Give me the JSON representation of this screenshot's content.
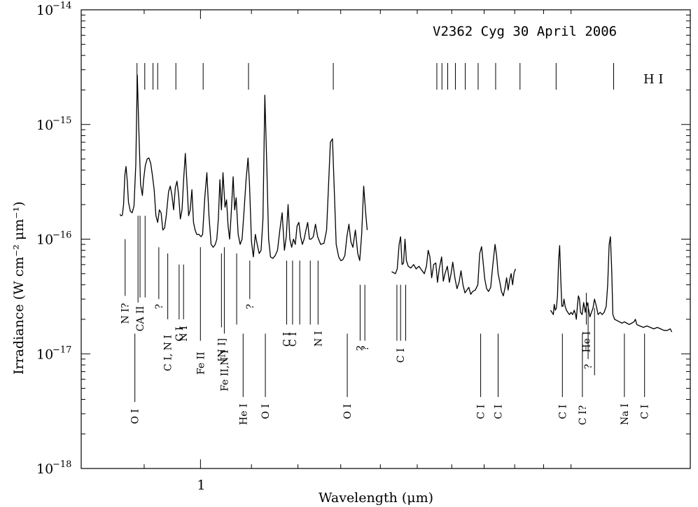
{
  "chart_data": {
    "type": "line",
    "title": "V2362 Cyg   30 April 2006",
    "xlabel": "Wavelength (μm)",
    "ylabel": "Irradiance (W cm⁻² μm⁻¹)",
    "x_scale": "log",
    "y_scale": "log",
    "xlim": [
      0.8,
      2.5
    ],
    "ylim": [
      1e-18,
      1e-14
    ],
    "x_tick_labels": [
      "1"
    ],
    "y_tick_labels": [
      {
        "base": "10",
        "exp": "−18",
        "value": 1e-18
      },
      {
        "base": "10",
        "exp": "−17",
        "value": 1e-17
      },
      {
        "base": "10",
        "exp": "−16",
        "value": 1e-16
      },
      {
        "base": "10",
        "exp": "−15",
        "value": 1e-15
      },
      {
        "base": "10",
        "exp": "−14",
        "value": 1e-14
      }
    ],
    "series_hi_label": "H I",
    "hi_line_wavelengths": [
      0.888,
      0.901,
      0.915,
      0.923,
      0.955,
      1.005,
      1.094,
      1.282,
      1.556,
      1.571,
      1.588,
      1.611,
      1.641,
      1.681,
      1.737,
      1.818,
      1.945,
      2.166
    ],
    "spectrum": [
      [
        0.86,
        1.65e-16
      ],
      [
        0.862,
        1.6e-16
      ],
      [
        0.864,
        1.62e-16
      ],
      [
        0.866,
        2e-16
      ],
      [
        0.868,
        3.6e-16
      ],
      [
        0.87,
        4.3e-16
      ],
      [
        0.872,
        3.2e-16
      ],
      [
        0.874,
        2.1e-16
      ],
      [
        0.877,
        1.75e-16
      ],
      [
        0.88,
        1.7e-16
      ],
      [
        0.883,
        1.95e-16
      ],
      [
        0.886,
        4.5e-16
      ],
      [
        0.8885,
        2.7e-15
      ],
      [
        0.891,
        9e-16
      ],
      [
        0.894,
        3e-16
      ],
      [
        0.897,
        2.4e-16
      ],
      [
        0.899,
        3.3e-16
      ],
      [
        0.902,
        4.4e-16
      ],
      [
        0.905,
        5e-16
      ],
      [
        0.908,
        5.1e-16
      ],
      [
        0.911,
        4.6e-16
      ],
      [
        0.914,
        3.6e-16
      ],
      [
        0.917,
        2.7e-16
      ],
      [
        0.92,
        1.6e-16
      ],
      [
        0.923,
        1.4e-16
      ],
      [
        0.926,
        1.8e-16
      ],
      [
        0.929,
        1.7e-16
      ],
      [
        0.932,
        1.2e-16
      ],
      [
        0.935,
        1.25e-16
      ],
      [
        0.938,
        1.6e-16
      ],
      [
        0.942,
        2.6e-16
      ],
      [
        0.945,
        2.9e-16
      ],
      [
        0.948,
        2.4e-16
      ],
      [
        0.951,
        1.8e-16
      ],
      [
        0.954,
        2.8e-16
      ],
      [
        0.957,
        3.2e-16
      ],
      [
        0.96,
        2.4e-16
      ],
      [
        0.963,
        1.5e-16
      ],
      [
        0.966,
        1.8e-16
      ],
      [
        0.969,
        3.3e-16
      ],
      [
        0.972,
        5.6e-16
      ],
      [
        0.975,
        3.1e-16
      ],
      [
        0.978,
        1.6e-16
      ],
      [
        0.981,
        1.8e-16
      ],
      [
        0.984,
        2.7e-16
      ],
      [
        0.987,
        1.4e-16
      ],
      [
        0.99,
        1.2e-16
      ],
      [
        0.993,
        1.1e-16
      ],
      [
        0.997,
        1.1e-16
      ],
      [
        1.001,
        1.05e-16
      ],
      [
        1.004,
        1.1e-16
      ],
      [
        1.008,
        2.3e-16
      ],
      [
        1.012,
        3.8e-16
      ],
      [
        1.016,
        1.6e-16
      ],
      [
        1.02,
        9e-17
      ],
      [
        1.024,
        8.5e-17
      ],
      [
        1.028,
        9e-17
      ],
      [
        1.031,
        1e-16
      ],
      [
        1.034,
        1.5e-16
      ],
      [
        1.037,
        3.3e-16
      ],
      [
        1.04,
        1.8e-16
      ],
      [
        1.043,
        3.8e-16
      ],
      [
        1.047,
        1.9e-16
      ],
      [
        1.05,
        2.2e-16
      ],
      [
        1.053,
        1.3e-16
      ],
      [
        1.056,
        1e-16
      ],
      [
        1.059,
        1.6e-16
      ],
      [
        1.063,
        3.5e-16
      ],
      [
        1.066,
        1.8e-16
      ],
      [
        1.069,
        2.3e-16
      ],
      [
        1.073,
        1.1e-16
      ],
      [
        1.077,
        9e-17
      ],
      [
        1.081,
        1e-16
      ],
      [
        1.085,
        1.8e-16
      ],
      [
        1.089,
        3.3e-16
      ],
      [
        1.093,
        5.1e-16
      ],
      [
        1.096,
        3e-16
      ],
      [
        1.1,
        9.5e-17
      ],
      [
        1.104,
        7e-17
      ],
      [
        1.108,
        1.1e-16
      ],
      [
        1.112,
        9e-17
      ],
      [
        1.116,
        7.5e-17
      ],
      [
        1.12,
        8e-17
      ],
      [
        1.124,
        1.5e-16
      ],
      [
        1.128,
        1.8e-15
      ],
      [
        1.132,
        4.6e-16
      ],
      [
        1.136,
        1e-16
      ],
      [
        1.14,
        7e-17
      ],
      [
        1.145,
        6.8e-17
      ],
      [
        1.15,
        7.2e-17
      ],
      [
        1.155,
        8e-17
      ],
      [
        1.16,
        1.2e-16
      ],
      [
        1.165,
        1.7e-16
      ],
      [
        1.17,
        8e-17
      ],
      [
        1.174,
        1.05e-16
      ],
      [
        1.178,
        2e-16
      ],
      [
        1.182,
        1e-16
      ],
      [
        1.186,
        8.5e-17
      ],
      [
        1.19,
        1e-16
      ],
      [
        1.194,
        9e-17
      ],
      [
        1.198,
        1.3e-16
      ],
      [
        1.202,
        1.4e-16
      ],
      [
        1.206,
        1.05e-16
      ],
      [
        1.21,
        9e-17
      ],
      [
        1.214,
        1e-16
      ],
      [
        1.218,
        1.2e-16
      ],
      [
        1.222,
        1.4e-16
      ],
      [
        1.226,
        1e-16
      ],
      [
        1.23,
        1e-16
      ],
      [
        1.235,
        1.05e-16
      ],
      [
        1.24,
        1.35e-16
      ],
      [
        1.245,
        1.05e-16
      ],
      [
        1.252,
        9e-17
      ],
      [
        1.26,
        9.2e-17
      ],
      [
        1.266,
        1.2e-16
      ],
      [
        1.27,
        2.6e-16
      ],
      [
        1.275,
        7e-16
      ],
      [
        1.28,
        7.5e-16
      ],
      [
        1.284,
        3e-16
      ],
      [
        1.289,
        9e-17
      ],
      [
        1.295,
        7e-17
      ],
      [
        1.3,
        6.5e-17
      ],
      [
        1.305,
        6.6e-17
      ],
      [
        1.31,
        7.2e-17
      ],
      [
        1.315,
        1.05e-16
      ],
      [
        1.32,
        1.35e-16
      ],
      [
        1.325,
        9.5e-17
      ],
      [
        1.33,
        8.5e-17
      ],
      [
        1.336,
        1.2e-16
      ],
      [
        1.342,
        7.5e-17
      ],
      [
        1.347,
        6.5e-17
      ],
      [
        1.352,
        1.1e-16
      ],
      [
        1.357,
        2.9e-16
      ],
      [
        1.362,
        1.7e-16
      ],
      [
        1.366,
        1.2e-16
      ],
      null,
      [
        1.43,
        5.2e-17
      ],
      [
        1.44,
        5e-17
      ],
      [
        1.445,
        5.5e-17
      ],
      [
        1.45,
        9e-17
      ],
      [
        1.454,
        1.05e-16
      ],
      [
        1.458,
        6e-17
      ],
      [
        1.462,
        6.2e-17
      ],
      [
        1.466,
        1e-16
      ],
      [
        1.47,
        6.5e-17
      ],
      [
        1.475,
        5.8e-17
      ],
      [
        1.482,
        5.6e-17
      ],
      [
        1.49,
        6e-17
      ],
      [
        1.497,
        5.5e-17
      ],
      [
        1.505,
        5.8e-17
      ],
      [
        1.512,
        5.4e-17
      ],
      [
        1.52,
        5e-17
      ],
      [
        1.526,
        5.8e-17
      ],
      [
        1.531,
        8e-17
      ],
      [
        1.536,
        7e-17
      ],
      [
        1.541,
        4.6e-17
      ],
      [
        1.547,
        6e-17
      ],
      [
        1.553,
        6.2e-17
      ],
      [
        1.558,
        4.2e-17
      ],
      [
        1.563,
        5.5e-17
      ],
      [
        1.57,
        7e-17
      ],
      [
        1.575,
        4.3e-17
      ],
      [
        1.58,
        5e-17
      ],
      [
        1.587,
        5.8e-17
      ],
      [
        1.593,
        4.2e-17
      ],
      [
        1.598,
        5e-17
      ],
      [
        1.603,
        6.3e-17
      ],
      [
        1.61,
        4.5e-17
      ],
      [
        1.616,
        3.7e-17
      ],
      [
        1.622,
        4.2e-17
      ],
      [
        1.628,
        5.3e-17
      ],
      [
        1.634,
        4e-17
      ],
      [
        1.64,
        3.4e-17
      ],
      [
        1.646,
        3.6e-17
      ],
      [
        1.652,
        3.8e-17
      ],
      [
        1.658,
        3.3e-17
      ],
      [
        1.664,
        3.5e-17
      ],
      [
        1.672,
        3.6e-17
      ],
      [
        1.68,
        4e-17
      ],
      [
        1.686,
        7.5e-17
      ],
      [
        1.692,
        8.6e-17
      ],
      [
        1.697,
        6.2e-17
      ],
      [
        1.702,
        4.5e-17
      ],
      [
        1.708,
        3.7e-17
      ],
      [
        1.714,
        3.5e-17
      ],
      [
        1.721,
        3.8e-17
      ],
      [
        1.728,
        6e-17
      ],
      [
        1.735,
        9e-17
      ],
      [
        1.74,
        7.2e-17
      ],
      [
        1.745,
        5e-17
      ],
      [
        1.75,
        4.3e-17
      ],
      [
        1.756,
        3.5e-17
      ],
      [
        1.762,
        3.2e-17
      ],
      [
        1.768,
        3.8e-17
      ],
      [
        1.773,
        4.6e-17
      ],
      [
        1.778,
        3.6e-17
      ],
      [
        1.783,
        4.4e-17
      ],
      [
        1.788,
        5e-17
      ],
      [
        1.793,
        4e-17
      ],
      [
        1.798,
        5.1e-17
      ],
      [
        1.803,
        5.5e-17
      ],
      null,
      [
        1.925,
        2.4e-17
      ],
      [
        1.93,
        2.3e-17
      ],
      [
        1.935,
        2.2e-17
      ],
      [
        1.938,
        2.7e-17
      ],
      [
        1.942,
        2.4e-17
      ],
      [
        1.946,
        2.5e-17
      ],
      [
        1.95,
        3.2e-17
      ],
      [
        1.954,
        6.5e-17
      ],
      [
        1.958,
        8.8e-17
      ],
      [
        1.962,
        4.5e-17
      ],
      [
        1.966,
        2.6e-17
      ],
      [
        1.97,
        2.6e-17
      ],
      [
        1.974,
        3e-17
      ],
      [
        1.978,
        2.6e-17
      ],
      [
        1.983,
        2.4e-17
      ],
      [
        1.988,
        2.3e-17
      ],
      [
        1.994,
        2.2e-17
      ],
      [
        2.0,
        2.3e-17
      ],
      [
        2.006,
        2.2e-17
      ],
      [
        2.012,
        2.4e-17
      ],
      [
        2.017,
        2.2e-17
      ],
      [
        2.02,
        2e-17
      ],
      [
        2.024,
        2.6e-17
      ],
      [
        2.028,
        3.2e-17
      ],
      [
        2.032,
        3e-17
      ],
      [
        2.036,
        2.3e-17
      ],
      [
        2.042,
        2.2e-17
      ],
      [
        2.048,
        2.8e-17
      ],
      [
        2.054,
        2.3e-17
      ],
      [
        2.06,
        2.8e-17
      ],
      [
        2.066,
        2.5e-17
      ],
      [
        2.072,
        2.1e-17
      ],
      [
        2.078,
        2.3e-17
      ],
      [
        2.084,
        2.5e-17
      ],
      [
        2.09,
        3e-17
      ],
      [
        2.097,
        2.6e-17
      ],
      [
        2.104,
        2.2e-17
      ],
      [
        2.112,
        2.3e-17
      ],
      [
        2.12,
        2.2e-17
      ],
      [
        2.128,
        2.3e-17
      ],
      [
        2.136,
        2.6e-17
      ],
      [
        2.142,
        4e-17
      ],
      [
        2.148,
        9e-17
      ],
      [
        2.153,
        1.05e-16
      ],
      [
        2.158,
        5.5e-17
      ],
      [
        2.163,
        2.2e-17
      ],
      [
        2.17,
        2e-17
      ],
      [
        2.18,
        1.95e-17
      ],
      [
        2.19,
        1.9e-17
      ],
      [
        2.2,
        1.85e-17
      ],
      [
        2.21,
        1.9e-17
      ],
      [
        2.22,
        1.85e-17
      ],
      [
        2.23,
        1.8e-17
      ],
      [
        2.24,
        1.85e-17
      ],
      [
        2.25,
        1.9e-17
      ],
      [
        2.256,
        2e-17
      ],
      [
        2.262,
        1.8e-17
      ],
      [
        2.275,
        1.75e-17
      ],
      [
        2.29,
        1.7e-17
      ],
      [
        2.305,
        1.75e-17
      ],
      [
        2.32,
        1.7e-17
      ],
      [
        2.335,
        1.65e-17
      ],
      [
        2.35,
        1.7e-17
      ],
      [
        2.365,
        1.65e-17
      ],
      [
        2.38,
        1.6e-17
      ],
      [
        2.395,
        1.6e-17
      ],
      [
        2.408,
        1.65e-17
      ],
      [
        2.415,
        1.55e-17
      ]
    ],
    "line_ids": [
      {
        "text": "N I?",
        "w": 0.8685,
        "line": [
          3.2e-17,
          1e-16
        ]
      },
      {
        "text": "CA II",
        "w": 0.8931,
        "line": [
          3.1e-17,
          1.6e-16
        ]
      },
      {
        "text": "",
        "w": 0.8897,
        "line": [
          2.8e-17,
          1.6e-16
        ]
      },
      {
        "text": "",
        "w": 0.9016,
        "line": [
          3.1e-17,
          1.6e-16
        ]
      },
      {
        "text": "O I",
        "w": 0.8845,
        "line": [
          3.8e-18,
          1.5e-17
        ]
      },
      {
        "text": "?",
        "w": 0.925,
        "line": [
          3e-17,
          8.5e-17
        ]
      },
      {
        "text": "C I, N I",
        "w": 0.9406,
        "line": [
          2e-17,
          7.5e-17
        ]
      },
      {
        "text": "C I",
        "w": 0.9608,
        "line": [
          2e-17,
          6e-17
        ]
      },
      {
        "text": "N I",
        "w": 0.9688,
        "line": [
          2e-17,
          6e-17
        ]
      },
      {
        "text": "Fe II",
        "w": 0.9999,
        "line": [
          1.3e-17,
          8.5e-17
        ]
      },
      {
        "text": "Fe II,N I",
        "w": 1.0456,
        "line": [
          1.5e-17,
          8.5e-17
        ]
      },
      {
        "text": "[N I]",
        "w": 1.04,
        "line": [
          1.7e-17,
          7.5e-17
        ]
      },
      {
        "text": "He I",
        "w": 1.083,
        "line": [
          4.2e-18,
          1.5e-17
        ]
      },
      {
        "text": "",
        "w": 1.07,
        "line": [
          1.8e-17,
          7.5e-17
        ]
      },
      {
        "text": "?",
        "w": 1.0966,
        "line": [
          3e-17,
          6.5e-17
        ]
      },
      {
        "text": "O I",
        "w": 1.129,
        "line": [
          4.2e-18,
          1.5e-17
        ]
      },
      {
        "text": "C I",
        "w": 1.175,
        "line": [
          1.8e-17,
          6.5e-17
        ]
      },
      {
        "text": "C I",
        "w": 1.188,
        "line": [
          1.8e-17,
          6.5e-17
        ]
      },
      {
        "text": "",
        "w": 1.204,
        "line": [
          1.8e-17,
          6.5e-17
        ]
      },
      {
        "text": "N I",
        "w": 1.246,
        "line": [
          1.8e-17,
          6.5e-17
        ]
      },
      {
        "text": "",
        "w": 1.228,
        "line": [
          1.8e-17,
          6.5e-17
        ]
      },
      {
        "text": "O I",
        "w": 1.316,
        "line": [
          4.2e-18,
          1.5e-17
        ]
      },
      {
        "text": "?",
        "w": 1.348,
        "line": [
          1.3e-17,
          4e-17
        ]
      },
      {
        "text": "?",
        "w": 1.36,
        "line": [
          1.3e-17,
          4e-17
        ]
      },
      {
        "text": "C I",
        "w": 1.454,
        "line": [
          1.3e-17,
          4e-17
        ]
      },
      {
        "text": "",
        "w": 1.468,
        "line": [
          1.3e-17,
          4e-17
        ]
      },
      {
        "text": "",
        "w": 1.444,
        "line": [
          1.3e-17,
          4e-17
        ]
      },
      {
        "text": "C I",
        "w": 1.689,
        "line": [
          4.2e-18,
          1.5e-17
        ]
      },
      {
        "text": "C I",
        "w": 1.745,
        "line": [
          4.2e-18,
          1.5e-17
        ]
      },
      {
        "text": "C I",
        "w": 1.968,
        "line": [
          4.2e-18,
          1.5e-17
        ]
      },
      {
        "text": "He I",
        "w": 2.058,
        "line": [
          1.8e-17,
          3.4e-17
        ]
      },
      {
        "text": "C I?",
        "w": 2.043,
        "line": [
          4.2e-18,
          1.5e-17
        ]
      },
      {
        "text": "?",
        "w": 2.065,
        "line": [
          9e-18,
          2.8e-17
        ]
      },
      {
        "text": "",
        "w": 2.09,
        "line": [
          6.5e-18,
          2.5e-17
        ]
      },
      {
        "text": "Na I",
        "w": 2.21,
        "line": [
          4.2e-18,
          1.5e-17
        ]
      },
      {
        "text": "C I",
        "w": 2.295,
        "line": [
          4.2e-18,
          1.5e-17
        ]
      }
    ]
  }
}
